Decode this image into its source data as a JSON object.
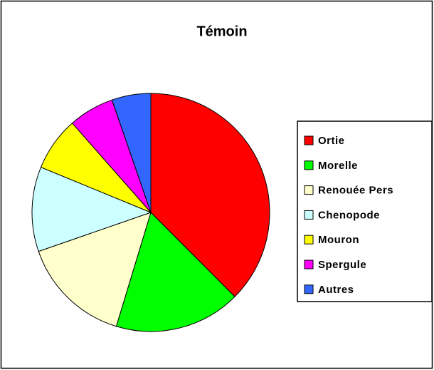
{
  "chart_data": {
    "type": "pie",
    "title": "Témoin",
    "categories": [
      "Ortie",
      "Morelle",
      "Renouée Pers",
      "Chenopode",
      "Mouron",
      "Spergule",
      "Autres"
    ],
    "values": [
      37.5,
      17.2,
      15,
      11.5,
      7.3,
      6.2,
      5.3
    ],
    "colors": [
      "#ff0000",
      "#00ff00",
      "#ffffcc",
      "#ccffff",
      "#ffff00",
      "#ff00ff",
      "#3366ff"
    ],
    "legend": "right"
  }
}
